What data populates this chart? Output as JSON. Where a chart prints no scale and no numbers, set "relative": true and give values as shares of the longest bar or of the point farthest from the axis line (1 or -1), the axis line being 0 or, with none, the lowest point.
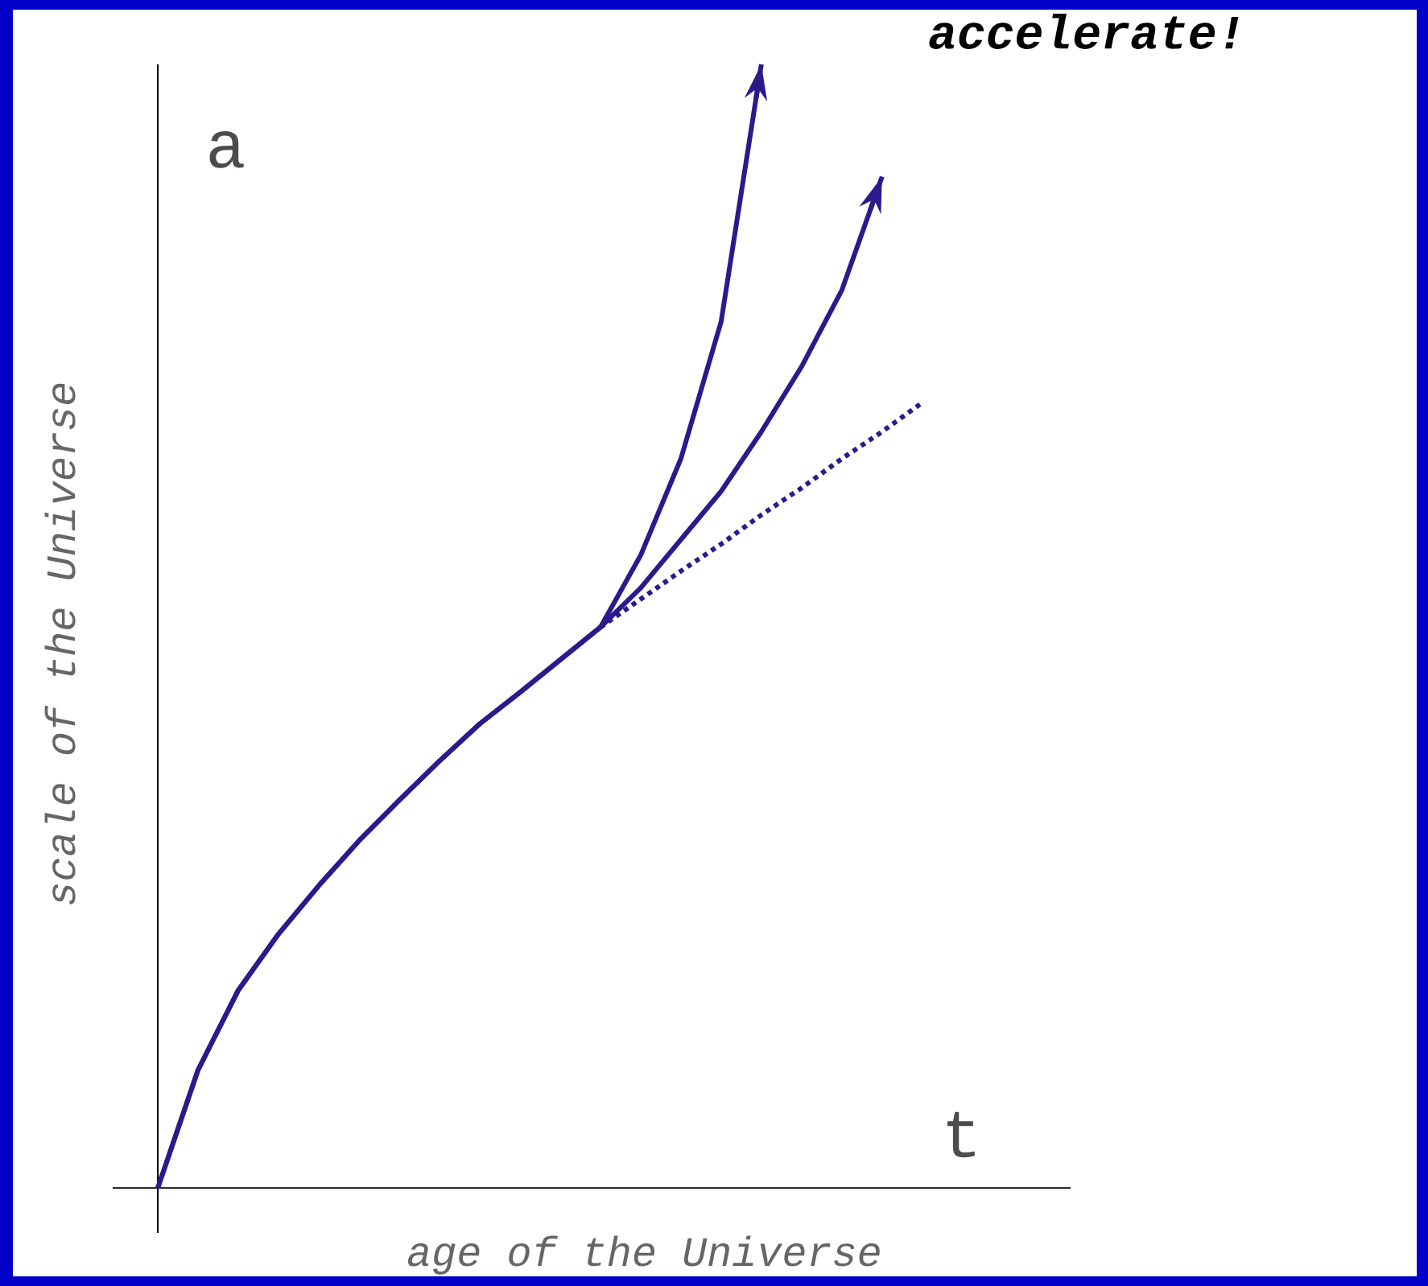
{
  "chart_data": {
    "type": "line",
    "title": "accelerate!",
    "xlabel": "age of the Universe",
    "ylabel": "scale of the Universe",
    "annotations": [
      "a",
      "t"
    ],
    "relative": true,
    "legend": false,
    "marker": "none",
    "categories": [
      null,
      null,
      null,
      null,
      null,
      null,
      null,
      null,
      null,
      null,
      null,
      null,
      null,
      null,
      null,
      null,
      null,
      null,
      null,
      null
    ],
    "series": [
      {
        "color": "#2b1a8c",
        "line_style": "solid",
        "values": [
          0,
          0.105,
          0.176,
          0.226,
          0.269,
          0.309,
          0.345,
          0.38,
          0.413,
          0.441,
          0.47,
          0.499,
          0.563,
          0.649,
          0.771,
          1.0,
          null,
          null,
          null,
          null
        ]
      },
      {
        "color": "#2b1a8c",
        "line_style": "solid",
        "values": [
          0,
          0.105,
          0.176,
          0.226,
          0.269,
          0.309,
          0.345,
          0.38,
          0.413,
          0.441,
          0.47,
          0.499,
          0.534,
          0.577,
          0.62,
          0.673,
          0.731,
          0.799,
          0.9,
          null
        ]
      },
      {
        "color": "#2b1a8c",
        "line_style": "dashed",
        "values": [
          null,
          null,
          null,
          null,
          null,
          null,
          null,
          null,
          null,
          null,
          null,
          0.499,
          0.524,
          0.549,
          0.573,
          0.599,
          0.623,
          0.649,
          0.673,
          0.699
        ]
      }
    ]
  }
}
